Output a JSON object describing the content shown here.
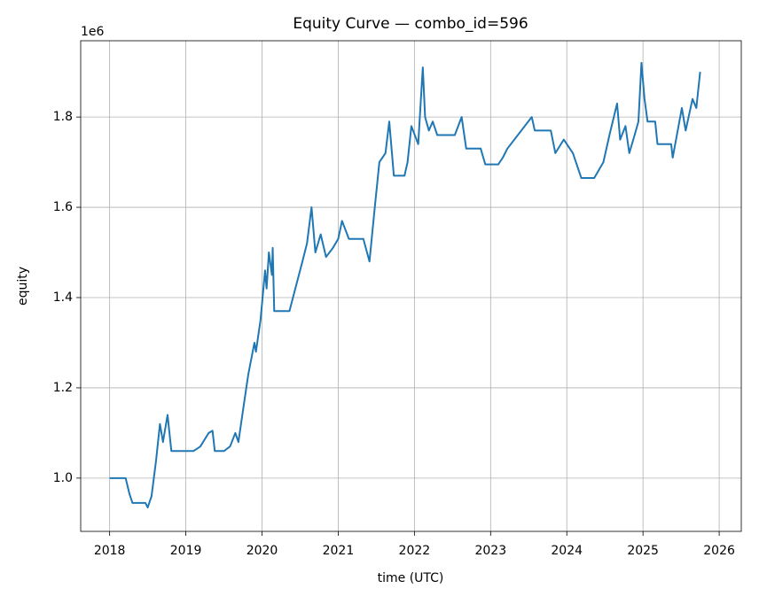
{
  "chart_data": {
    "type": "line",
    "title": "Equity Curve — combo_id=596",
    "x_label": "time (UTC)",
    "y_label": "equity",
    "y_offset_label": "1e6",
    "color": "#1f77b4",
    "grid": true,
    "xlim": [
      2017.62,
      2026.29
    ],
    "xticks": [
      2018,
      2019,
      2020,
      2021,
      2022,
      2023,
      2024,
      2025,
      2026
    ],
    "ylim": [
      882000,
      1969000
    ],
    "yticks": [
      {
        "value": 1000000,
        "label": "1.0"
      },
      {
        "value": 1200000,
        "label": "1.2"
      },
      {
        "value": 1400000,
        "label": "1.4"
      },
      {
        "value": 1600000,
        "label": "1.6"
      },
      {
        "value": 1800000,
        "label": "1.8"
      }
    ],
    "x": [
      2018.0,
      2018.21,
      2018.26,
      2018.3,
      2018.47,
      2018.5,
      2018.55,
      2018.61,
      2018.66,
      2018.7,
      2018.76,
      2018.81,
      2019.1,
      2019.19,
      2019.3,
      2019.35,
      2019.38,
      2019.5,
      2019.58,
      2019.65,
      2019.69,
      2019.75,
      2019.82,
      2019.9,
      2019.92,
      2019.98,
      2020.04,
      2020.06,
      2020.09,
      2020.13,
      2020.14,
      2020.16,
      2020.36,
      2020.53,
      2020.59,
      2020.65,
      2020.7,
      2020.77,
      2020.84,
      2020.93,
      2021.0,
      2021.05,
      2021.14,
      2021.33,
      2021.41,
      2021.48,
      2021.54,
      2021.62,
      2021.67,
      2021.73,
      2021.87,
      2021.91,
      2021.96,
      2022.05,
      2022.11,
      2022.14,
      2022.19,
      2022.24,
      2022.3,
      2022.53,
      2022.62,
      2022.68,
      2022.87,
      2022.93,
      2023.1,
      2023.16,
      2023.22,
      2023.54,
      2023.58,
      2023.79,
      2023.85,
      2023.96,
      2024.08,
      2024.19,
      2024.36,
      2024.48,
      2024.56,
      2024.66,
      2024.7,
      2024.77,
      2024.82,
      2024.89,
      2024.94,
      2024.98,
      2025.02,
      2025.06,
      2025.16,
      2025.19,
      2025.37,
      2025.39,
      2025.51,
      2025.56,
      2025.65,
      2025.7,
      2025.75
    ],
    "values": [
      1000000,
      1000000,
      965000,
      945000,
      945000,
      935000,
      960000,
      1040000,
      1120000,
      1080000,
      1140000,
      1060000,
      1060000,
      1070000,
      1100000,
      1105000,
      1060000,
      1060000,
      1070000,
      1100000,
      1080000,
      1150000,
      1230000,
      1300000,
      1280000,
      1350000,
      1460000,
      1420000,
      1500000,
      1450000,
      1510000,
      1370000,
      1370000,
      1480000,
      1520000,
      1600000,
      1500000,
      1540000,
      1490000,
      1510000,
      1530000,
      1570000,
      1530000,
      1530000,
      1480000,
      1600000,
      1700000,
      1720000,
      1790000,
      1670000,
      1670000,
      1700000,
      1780000,
      1740000,
      1910000,
      1800000,
      1770000,
      1790000,
      1760000,
      1760000,
      1800000,
      1730000,
      1730000,
      1695000,
      1695000,
      1710000,
      1730000,
      1800000,
      1770000,
      1770000,
      1720000,
      1750000,
      1720000,
      1665000,
      1665000,
      1700000,
      1760000,
      1830000,
      1750000,
      1780000,
      1720000,
      1760000,
      1790000,
      1920000,
      1840000,
      1790000,
      1790000,
      1740000,
      1740000,
      1710000,
      1820000,
      1770000,
      1840000,
      1820000,
      1900000
    ]
  }
}
